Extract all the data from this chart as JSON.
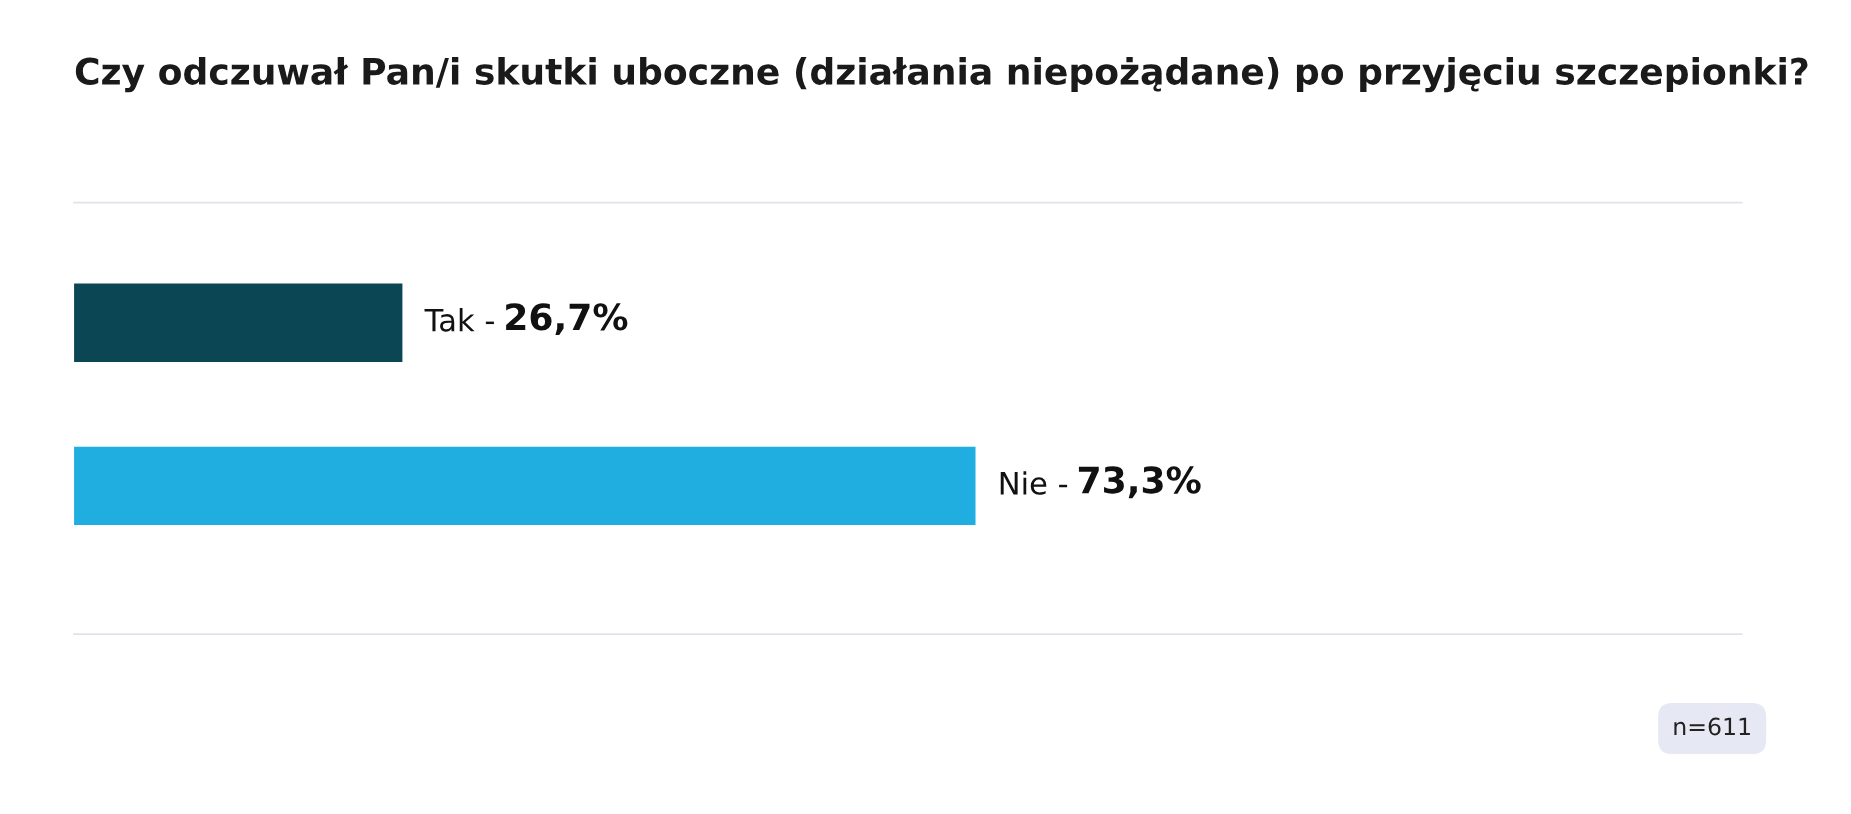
{
  "chart_data": {
    "type": "bar",
    "orientation": "horizontal",
    "title": "Czy odczuwał Pan/i skutki uboczne (działania niepożądane) po przyjęciu szczepionki?",
    "categories": [
      "Tak -",
      "Nie -"
    ],
    "values": [
      26.7,
      73.3
    ],
    "colors": [
      "#0b4654",
      "#20aee1"
    ],
    "value_labels": [
      "26,7%",
      "73,3%"
    ],
    "annotations": [
      "n=611"
    ],
    "legend": false,
    "tick_labels": false
  }
}
